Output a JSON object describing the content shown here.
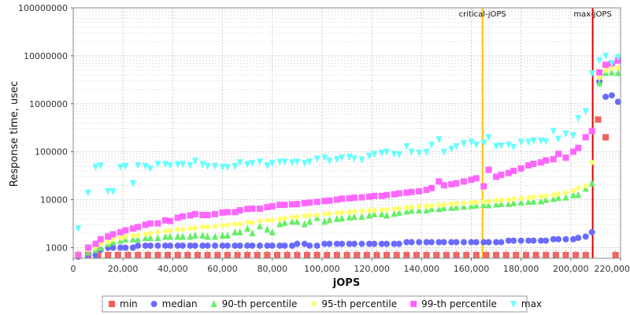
{
  "chart_data": {
    "type": "scatter",
    "xlabel": "jOPS",
    "ylabel": "Response time, usec",
    "xlim": [
      0,
      220000
    ],
    "ylim": [
      600,
      100000000
    ],
    "yscale": "log",
    "x_ticks": [
      "0",
      "20,000",
      "40,000",
      "60,000",
      "80,000",
      "100,000",
      "120,000",
      "140,000",
      "160,000",
      "180,000",
      "200,000",
      "220,000"
    ],
    "x_tick_values": [
      0,
      20000,
      40000,
      60000,
      80000,
      100000,
      120000,
      140000,
      160000,
      180000,
      200000,
      220000
    ],
    "y_ticks": [
      "1000",
      "10000",
      "100000",
      "1000000",
      "10000000",
      "100000000"
    ],
    "y_tick_values": [
      1000,
      10000,
      100000,
      1000000,
      10000000,
      100000000
    ],
    "grid": true,
    "legend_position": "bottom",
    "vertical_lines": [
      {
        "label": "critical-jOPS",
        "x": 164500,
        "color": "#ffc200"
      },
      {
        "label": "max-jOPS",
        "x": 208800,
        "color": "#dd0000"
      }
    ],
    "series": [
      {
        "name": "min",
        "color": "#f06060",
        "marker": "square",
        "x": [
          2000,
          6000,
          10000,
          14000,
          18000,
          22000,
          26000,
          30000,
          34000,
          38000,
          42000,
          46000,
          50000,
          54000,
          58000,
          62000,
          66000,
          70000,
          74000,
          78000,
          82000,
          86000,
          90000,
          94000,
          98000,
          102000,
          106000,
          110000,
          114000,
          118000,
          122000,
          126000,
          130000,
          134000,
          138000,
          142000,
          146000,
          150000,
          154000,
          158000,
          162000,
          166000,
          170000,
          174000,
          178000,
          182000,
          186000,
          190000,
          194000,
          198000,
          202000,
          206000,
          211000,
          214000,
          218000
        ],
        "y": [
          700,
          700,
          700,
          700,
          700,
          700,
          700,
          700,
          700,
          700,
          700,
          700,
          700,
          700,
          700,
          700,
          700,
          700,
          700,
          700,
          700,
          700,
          700,
          700,
          700,
          700,
          700,
          700,
          700,
          700,
          700,
          700,
          700,
          700,
          700,
          700,
          700,
          700,
          700,
          700,
          700,
          700,
          700,
          700,
          700,
          700,
          700,
          700,
          700,
          700,
          700,
          700,
          470000,
          200000,
          700
        ]
      },
      {
        "name": "median",
        "color": "#6a6aff",
        "marker": "circle",
        "x": [
          2000,
          6000,
          9000,
          11000,
          14000,
          16000,
          19000,
          21000,
          24000,
          26000,
          29000,
          31000,
          34000,
          37000,
          39000,
          42000,
          44000,
          47000,
          49000,
          52000,
          54000,
          57000,
          60000,
          62000,
          65000,
          67000,
          70000,
          72000,
          75000,
          78000,
          80000,
          83000,
          85000,
          88000,
          90000,
          93000,
          95000,
          98000,
          101000,
          103000,
          106000,
          108000,
          111000,
          113000,
          116000,
          119000,
          121000,
          124000,
          126000,
          129000,
          131000,
          134000,
          136000,
          139000,
          142000,
          144000,
          147000,
          149000,
          152000,
          154000,
          157000,
          160000,
          162000,
          165000,
          167000,
          170000,
          172000,
          175000,
          177000,
          180000,
          183000,
          185000,
          188000,
          190000,
          193000,
          195000,
          198000,
          201000,
          203000,
          206000,
          208500,
          211500,
          214000,
          216500,
          219000
        ],
        "y": [
          650,
          700,
          700,
          900,
          1000,
          1000,
          1000,
          1000,
          1000,
          1100,
          1100,
          1100,
          1100,
          1100,
          1100,
          1100,
          1100,
          1100,
          1100,
          1100,
          1100,
          1100,
          1100,
          1100,
          1100,
          1100,
          1100,
          1100,
          1100,
          1100,
          1100,
          1100,
          1100,
          1100,
          1200,
          1200,
          1100,
          1100,
          1200,
          1200,
          1200,
          1200,
          1200,
          1200,
          1200,
          1200,
          1200,
          1200,
          1200,
          1200,
          1200,
          1300,
          1300,
          1300,
          1300,
          1300,
          1300,
          1300,
          1300,
          1300,
          1300,
          1300,
          1300,
          1300,
          1300,
          1300,
          1300,
          1400,
          1400,
          1400,
          1400,
          1400,
          1400,
          1400,
          1500,
          1500,
          1500,
          1500,
          1600,
          1700,
          2100,
          2900000,
          1400000,
          1500000,
          1100000
        ]
      },
      {
        "name": "90-th percentile",
        "color": "#66ee66",
        "marker": "triangle-up",
        "x": [
          2000,
          6000,
          9000,
          11000,
          14000,
          16000,
          19000,
          21000,
          24000,
          26000,
          29000,
          31000,
          34000,
          37000,
          39000,
          42000,
          44000,
          47000,
          49000,
          52000,
          54000,
          57000,
          60000,
          62000,
          65000,
          67000,
          70000,
          72000,
          75000,
          78000,
          80000,
          83000,
          85000,
          88000,
          90000,
          93000,
          95000,
          98000,
          101000,
          103000,
          106000,
          108000,
          111000,
          113000,
          116000,
          119000,
          121000,
          124000,
          126000,
          129000,
          131000,
          134000,
          136000,
          139000,
          142000,
          144000,
          147000,
          149000,
          152000,
          154000,
          157000,
          160000,
          162000,
          165000,
          167000,
          170000,
          172000,
          175000,
          177000,
          180000,
          183000,
          185000,
          188000,
          190000,
          193000,
          195000,
          198000,
          201000,
          203000,
          206000,
          208500,
          211500,
          214000,
          216500,
          219000
        ],
        "y": [
          700,
          800,
          900,
          1000,
          1200,
          1300,
          1400,
          1500,
          1500,
          1500,
          1600,
          1600,
          1600,
          1700,
          1700,
          1700,
          1700,
          1700,
          1800,
          1800,
          1700,
          1700,
          1800,
          1800,
          2100,
          2100,
          2500,
          2000,
          2800,
          2400,
          2100,
          3100,
          3300,
          3500,
          3500,
          3100,
          3500,
          4200,
          3500,
          3800,
          4000,
          4100,
          4300,
          4400,
          4400,
          4700,
          5000,
          5000,
          4700,
          5100,
          5400,
          5700,
          6000,
          6000,
          6000,
          6500,
          6400,
          6700,
          6800,
          7000,
          7200,
          7400,
          7600,
          7800,
          7700,
          8000,
          8200,
          8200,
          8500,
          8800,
          9000,
          9200,
          9300,
          10000,
          10400,
          11000,
          11200,
          12500,
          12600,
          17000,
          22000,
          2700000,
          4400000,
          4500000,
          4400000
        ]
      },
      {
        "name": "95-th percentile",
        "color": "#ffff66",
        "marker": "diamond",
        "x": [
          2000,
          6000,
          9000,
          11000,
          14000,
          16000,
          19000,
          21000,
          24000,
          26000,
          29000,
          31000,
          34000,
          37000,
          39000,
          42000,
          44000,
          47000,
          49000,
          52000,
          54000,
          57000,
          60000,
          62000,
          65000,
          67000,
          70000,
          72000,
          75000,
          78000,
          80000,
          83000,
          85000,
          88000,
          90000,
          93000,
          95000,
          98000,
          101000,
          103000,
          106000,
          108000,
          111000,
          113000,
          116000,
          119000,
          121000,
          124000,
          126000,
          129000,
          131000,
          134000,
          136000,
          139000,
          142000,
          144000,
          147000,
          149000,
          152000,
          154000,
          157000,
          160000,
          162000,
          165000,
          167000,
          170000,
          172000,
          175000,
          177000,
          180000,
          183000,
          185000,
          188000,
          190000,
          193000,
          195000,
          198000,
          201000,
          203000,
          206000,
          208500,
          211500,
          214000,
          216500,
          219000
        ],
        "y": [
          700,
          900,
          1000,
          1200,
          1300,
          1500,
          1600,
          1700,
          1800,
          1800,
          1900,
          2000,
          2100,
          2200,
          2300,
          2400,
          2400,
          2500,
          2600,
          2700,
          2700,
          2800,
          2900,
          3000,
          3100,
          3100,
          3400,
          3300,
          3600,
          3700,
          3800,
          3900,
          4100,
          4300,
          4400,
          4600,
          4700,
          4800,
          5000,
          5100,
          5300,
          5400,
          5500,
          5600,
          5800,
          6000,
          6000,
          6200,
          6200,
          6400,
          6600,
          6800,
          7000,
          7200,
          7300,
          7500,
          7700,
          7900,
          8100,
          8300,
          8500,
          8700,
          8900,
          9100,
          9300,
          9600,
          9800,
          10000,
          10400,
          10700,
          11000,
          11300,
          11700,
          12000,
          12600,
          13200,
          14000,
          15500,
          17500,
          19500,
          60000,
          3500000,
          5000000,
          5500000,
          5600000
        ]
      },
      {
        "name": "99-th percentile",
        "color": "#ff66ff",
        "marker": "square",
        "x": [
          2000,
          6000,
          9000,
          11000,
          14000,
          16000,
          19000,
          21000,
          24000,
          26000,
          29000,
          31000,
          34000,
          37000,
          39000,
          42000,
          44000,
          47000,
          49000,
          52000,
          54000,
          57000,
          60000,
          62000,
          65000,
          67000,
          70000,
          72000,
          75000,
          78000,
          80000,
          83000,
          85000,
          88000,
          90000,
          93000,
          95000,
          98000,
          101000,
          103000,
          106000,
          108000,
          111000,
          113000,
          116000,
          119000,
          121000,
          124000,
          126000,
          129000,
          131000,
          134000,
          136000,
          139000,
          142000,
          144000,
          147000,
          149000,
          152000,
          154000,
          157000,
          160000,
          162000,
          165000,
          167000,
          170000,
          172000,
          175000,
          177000,
          180000,
          183000,
          185000,
          188000,
          190000,
          193000,
          195000,
          198000,
          201000,
          203000,
          206000,
          208500,
          211500,
          214000,
          216500,
          219000
        ],
        "y": [
          700,
          1000,
          1200,
          1500,
          1700,
          1900,
          2100,
          2300,
          2500,
          2700,
          3000,
          3200,
          3200,
          3700,
          3600,
          4200,
          4500,
          4700,
          5000,
          4800,
          4800,
          5000,
          5400,
          5500,
          5500,
          6000,
          6400,
          6500,
          6500,
          7000,
          7300,
          7800,
          7800,
          8000,
          8100,
          8500,
          8700,
          9000,
          9400,
          9600,
          10000,
          10500,
          10700,
          11000,
          11200,
          11600,
          12000,
          12000,
          12500,
          13000,
          13500,
          14000,
          14500,
          15000,
          16000,
          17500,
          24000,
          20000,
          21000,
          22000,
          24000,
          26000,
          28000,
          19000,
          42000,
          30000,
          33000,
          36000,
          40000,
          45000,
          52000,
          56000,
          60000,
          66000,
          70000,
          90000,
          75000,
          100000,
          120000,
          200000,
          270000,
          4500000,
          6500000,
          7000000,
          8000000
        ]
      },
      {
        "name": "max",
        "color": "#66ffff",
        "marker": "triangle-down",
        "x": [
          2000,
          6000,
          9000,
          11000,
          14000,
          16000,
          19000,
          21000,
          24000,
          26000,
          29000,
          31000,
          34000,
          37000,
          39000,
          42000,
          44000,
          47000,
          49000,
          52000,
          54000,
          57000,
          60000,
          62000,
          65000,
          67000,
          70000,
          72000,
          75000,
          78000,
          80000,
          83000,
          85000,
          88000,
          90000,
          93000,
          95000,
          98000,
          101000,
          103000,
          106000,
          108000,
          111000,
          113000,
          116000,
          119000,
          121000,
          124000,
          126000,
          129000,
          131000,
          134000,
          136000,
          139000,
          142000,
          144000,
          147000,
          149000,
          152000,
          154000,
          157000,
          160000,
          162000,
          165000,
          167000,
          170000,
          172000,
          175000,
          177000,
          180000,
          183000,
          185000,
          188000,
          190000,
          193000,
          195000,
          198000,
          201000,
          203000,
          206000,
          208500,
          211500,
          214000,
          216500,
          219000
        ],
        "y": [
          2500,
          14000,
          48000,
          52000,
          15000,
          15000,
          48000,
          50000,
          22000,
          52000,
          50000,
          45000,
          56000,
          55000,
          52000,
          55000,
          55000,
          52000,
          65000,
          55000,
          50000,
          50000,
          48000,
          48000,
          50000,
          60000,
          55000,
          58000,
          62000,
          52000,
          58000,
          62000,
          62000,
          60000,
          62000,
          58000,
          62000,
          72000,
          75000,
          65000,
          70000,
          75000,
          78000,
          72000,
          68000,
          82000,
          90000,
          95000,
          100000,
          90000,
          88000,
          130000,
          100000,
          95000,
          100000,
          140000,
          180000,
          100000,
          115000,
          130000,
          150000,
          160000,
          140000,
          155000,
          200000,
          130000,
          135000,
          140000,
          125000,
          160000,
          160000,
          170000,
          170000,
          165000,
          270000,
          185000,
          240000,
          220000,
          500000,
          700000,
          4300000,
          8000000,
          10000000,
          7000000,
          9500000
        ]
      }
    ]
  }
}
